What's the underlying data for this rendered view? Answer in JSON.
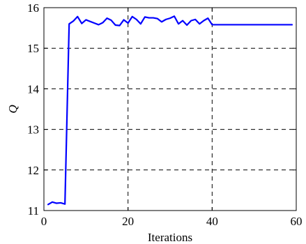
{
  "chart_data": {
    "type": "line",
    "title": "",
    "xlabel": "Iterations",
    "ylabel": "Q",
    "xlim": [
      0,
      60
    ],
    "ylim": [
      11,
      16
    ],
    "x_ticks": [
      0,
      20,
      40,
      60
    ],
    "y_ticks": [
      11,
      12,
      13,
      14,
      15,
      16
    ],
    "x_tick_labels": [
      "0",
      "20",
      "40",
      "60"
    ],
    "y_tick_labels": [
      "11",
      "12",
      "13",
      "14",
      "15",
      "16"
    ],
    "grid": true,
    "colors": {
      "series": "#0000ff"
    },
    "series": [
      {
        "x": [
          1,
          2,
          3,
          4,
          5,
          6,
          7,
          8,
          9,
          10,
          11,
          12,
          13,
          14,
          15,
          16,
          17,
          18,
          19,
          20,
          21,
          22,
          23,
          24,
          25,
          26,
          27,
          28,
          29,
          30,
          31,
          32,
          33,
          34,
          35,
          36,
          37,
          38,
          39,
          40,
          41,
          42,
          43,
          44,
          45,
          46,
          47,
          48,
          49,
          50,
          51,
          52,
          53,
          54,
          55,
          56,
          57,
          58,
          59
        ],
        "y": [
          11.15,
          11.21,
          11.18,
          11.19,
          11.16,
          15.6,
          15.67,
          15.78,
          15.61,
          15.7,
          15.66,
          15.62,
          15.58,
          15.63,
          15.74,
          15.69,
          15.57,
          15.56,
          15.7,
          15.62,
          15.78,
          15.71,
          15.6,
          15.77,
          15.75,
          15.75,
          15.73,
          15.65,
          15.71,
          15.74,
          15.79,
          15.6,
          15.68,
          15.57,
          15.68,
          15.71,
          15.6,
          15.68,
          15.74,
          15.58,
          15.58,
          15.58,
          15.58,
          15.58,
          15.58,
          15.58,
          15.58,
          15.58,
          15.58,
          15.58,
          15.58,
          15.58,
          15.58,
          15.58,
          15.58,
          15.58,
          15.58,
          15.58,
          15.58
        ]
      }
    ]
  }
}
